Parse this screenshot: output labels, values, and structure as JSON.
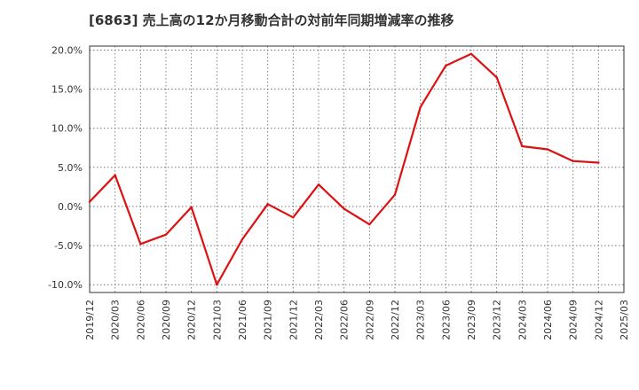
{
  "chart_data": {
    "type": "line",
    "title": "[6863]  売上高の12か月移動合計の対前年同期増減率の推移",
    "xlabel": "",
    "ylabel": "",
    "x": [
      "2019/12",
      "2020/03",
      "2020/06",
      "2020/09",
      "2020/12",
      "2021/03",
      "2021/06",
      "2021/09",
      "2021/12",
      "2022/03",
      "2022/06",
      "2022/09",
      "2022/12",
      "2023/03",
      "2023/06",
      "2023/09",
      "2023/12",
      "2024/03",
      "2024/06",
      "2024/09",
      "2024/12"
    ],
    "x_ticks": [
      "2019/12",
      "2020/03",
      "2020/06",
      "2020/09",
      "2020/12",
      "2021/03",
      "2021/06",
      "2021/09",
      "2021/12",
      "2022/03",
      "2022/06",
      "2022/09",
      "2022/12",
      "2023/03",
      "2023/06",
      "2023/09",
      "2023/12",
      "2024/03",
      "2024/06",
      "2024/09",
      "2024/12",
      "2025/03"
    ],
    "y_ticks": [
      20,
      15,
      10,
      5,
      0,
      -5,
      -10
    ],
    "y_tick_labels": [
      "20.0%",
      "15.0%",
      "10.0%",
      "5.0%",
      "0.0%",
      "-5.0%",
      "-10.0%"
    ],
    "ylim": [
      -11,
      20.5
    ],
    "grid": true,
    "legend": "none",
    "series": [
      {
        "name": "対前年同期増減率",
        "color": "#dd1111",
        "values": [
          0.6,
          4.0,
          -4.8,
          -3.6,
          -0.1,
          -10.0,
          -4.2,
          0.3,
          -1.4,
          2.8,
          -0.3,
          -2.3,
          1.5,
          12.7,
          18.0,
          19.5,
          16.5,
          7.7,
          7.3,
          5.8,
          5.6
        ]
      }
    ]
  }
}
